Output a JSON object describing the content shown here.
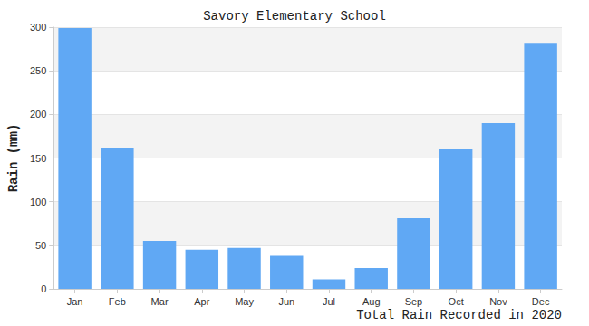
{
  "chart_data": {
    "type": "bar",
    "title": "Savory Elementary School",
    "y_label": "Rain (mm)",
    "x_label": "Total Rain Recorded in 2020",
    "categories": [
      "Jan",
      "Feb",
      "Mar",
      "Apr",
      "May",
      "Jun",
      "Jul",
      "Aug",
      "Sep",
      "Oct",
      "Nov",
      "Dec"
    ],
    "values": [
      299,
      162,
      55,
      45,
      47,
      38,
      11,
      24,
      81,
      161,
      190,
      281
    ],
    "color": "#60a8f4",
    "ylim": [
      0,
      300
    ],
    "yticks": [
      0,
      50,
      100,
      150,
      200,
      250,
      300
    ],
    "grid": true
  }
}
